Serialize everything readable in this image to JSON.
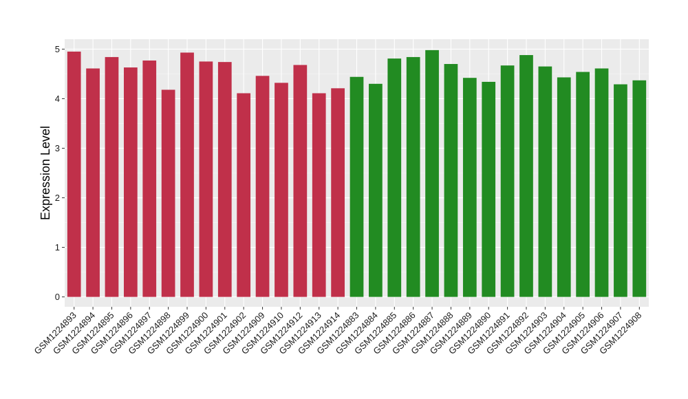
{
  "chart_data": {
    "type": "bar",
    "title": "",
    "xlabel": "",
    "ylabel": "Expression Level",
    "ylim": [
      -0.2,
      5.2
    ],
    "yticks": [
      0,
      1,
      2,
      3,
      4,
      5
    ],
    "grid": true,
    "legend": "none",
    "background": "#ebebeb",
    "categories": [
      "GSM1224893",
      "GSM1224894",
      "GSM1224895",
      "GSM1224896",
      "GSM1224897",
      "GSM1224898",
      "GSM1224899",
      "GSM1224900",
      "GSM1224901",
      "GSM1224902",
      "GSM1224909",
      "GSM1224910",
      "GSM1224912",
      "GSM1224913",
      "GSM1224914",
      "GSM1224883",
      "GSM1224884",
      "GSM1224885",
      "GSM1224886",
      "GSM1224887",
      "GSM1224888",
      "GSM1224889",
      "GSM1224890",
      "GSM1224891",
      "GSM1224892",
      "GSM1224903",
      "GSM1224904",
      "GSM1224905",
      "GSM1224906",
      "GSM1224907",
      "GSM1224908"
    ],
    "values": [
      4.95,
      4.61,
      4.84,
      4.63,
      4.77,
      4.18,
      4.93,
      4.75,
      4.74,
      4.11,
      4.46,
      4.32,
      4.68,
      4.11,
      4.21,
      4.44,
      4.3,
      4.81,
      4.84,
      4.98,
      4.7,
      4.42,
      4.34,
      4.67,
      4.88,
      4.65,
      4.43,
      4.54,
      4.61,
      4.29,
      4.37
    ],
    "bar_colors": [
      "#c0304a",
      "#c0304a",
      "#c0304a",
      "#c0304a",
      "#c0304a",
      "#c0304a",
      "#c0304a",
      "#c0304a",
      "#c0304a",
      "#c0304a",
      "#c0304a",
      "#c0304a",
      "#c0304a",
      "#c0304a",
      "#c0304a",
      "#228b22",
      "#228b22",
      "#228b22",
      "#228b22",
      "#228b22",
      "#228b22",
      "#228b22",
      "#228b22",
      "#228b22",
      "#228b22",
      "#228b22",
      "#228b22",
      "#228b22",
      "#228b22",
      "#228b22",
      "#228b22"
    ]
  }
}
